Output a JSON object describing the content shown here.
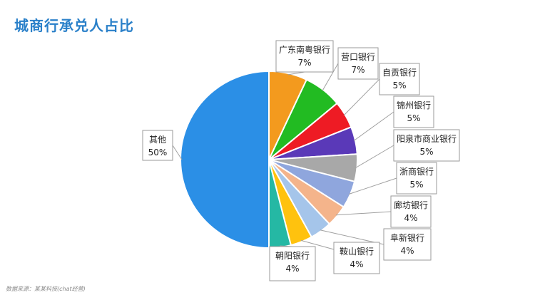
{
  "title": "城商行承兑人占比",
  "source": "数据来源：某某科技(chat经营)",
  "chart_data": {
    "type": "pie",
    "title": "城商行承兑人占比",
    "slices": [
      {
        "label": "广东南粤银行",
        "value": 7,
        "display": "7%",
        "color": "#f39a1e"
      },
      {
        "label": "营口银行",
        "value": 7,
        "display": "7%",
        "color": "#22bb22"
      },
      {
        "label": "自贡银行",
        "value": 5,
        "display": "5%",
        "color": "#ee1b24"
      },
      {
        "label": "锦州银行",
        "value": 5,
        "display": "5%",
        "color": "#5a39b8"
      },
      {
        "label": "阳泉市商业银行",
        "value": 5,
        "display": "5%",
        "color": "#a8a8a8"
      },
      {
        "label": "浙商银行",
        "value": 5,
        "display": "5%",
        "color": "#8fa6dd"
      },
      {
        "label": "廊坊银行",
        "value": 4,
        "display": "4%",
        "color": "#f4b48b"
      },
      {
        "label": "阜新银行",
        "value": 4,
        "display": "4%",
        "color": "#a5c5ea"
      },
      {
        "label": "鞍山银行",
        "value": 4,
        "display": "4%",
        "color": "#ffc20e"
      },
      {
        "label": "朝阳银行",
        "value": 4,
        "display": "4%",
        "color": "#25b8a4"
      },
      {
        "label": "其他",
        "value": 50,
        "display": "50%",
        "color": "#2b8fe6"
      }
    ]
  }
}
